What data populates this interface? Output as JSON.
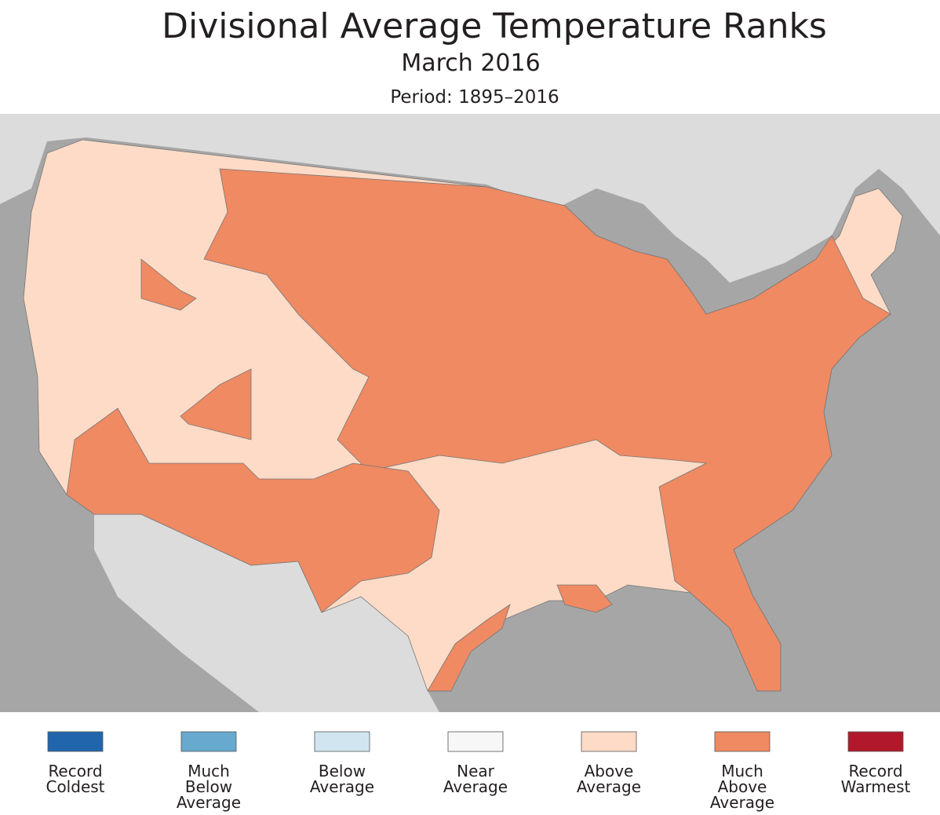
{
  "header": {
    "title": "Divisional Average Temperature Ranks",
    "subtitle": "March 2016",
    "period": "Period: 1895–2016"
  },
  "legend": [
    {
      "label": [
        "Record",
        "Coldest"
      ],
      "color": "#2166ac"
    },
    {
      "label": [
        "Much",
        "Below",
        "Average"
      ],
      "color": "#67a9cf"
    },
    {
      "label": [
        "Below",
        "Average"
      ],
      "color": "#d1e5f0"
    },
    {
      "label": [
        "Near",
        "Average"
      ],
      "color": "#f7f7f7"
    },
    {
      "label": [
        "Above",
        "Average"
      ],
      "color": "#fddbc7"
    },
    {
      "label": [
        "Much",
        "Above",
        "Average"
      ],
      "color": "#ef8a62"
    },
    {
      "label": [
        "Record",
        "Warmest"
      ],
      "color": "#b2182b"
    }
  ]
}
